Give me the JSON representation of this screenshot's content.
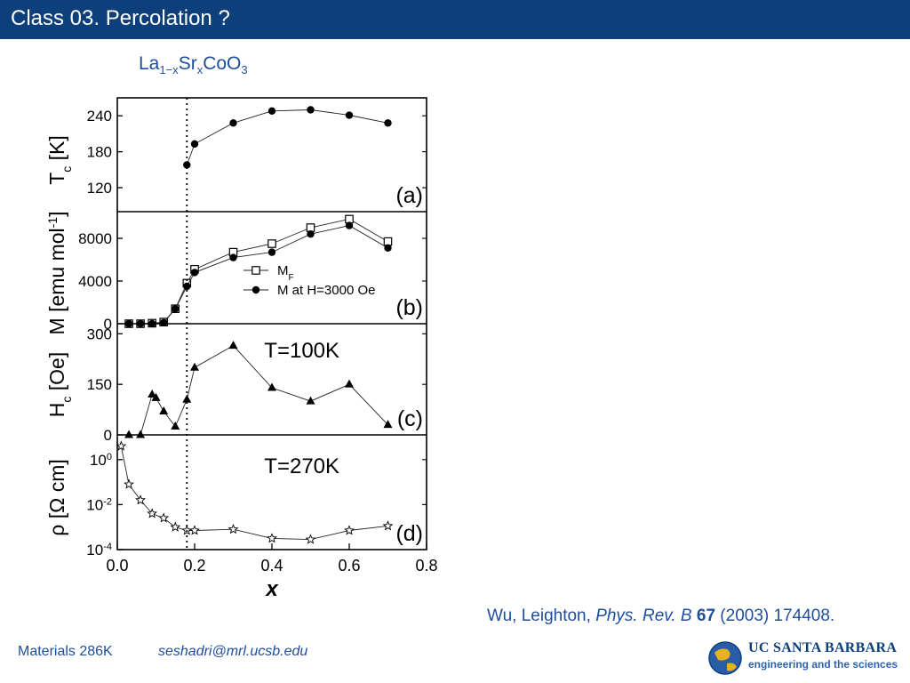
{
  "header": {
    "title": "Class 03. Percolation ?"
  },
  "compound": {
    "base": "La",
    "sub1": "1−x",
    "mid": "Sr",
    "sub2": "x",
    "tail": "CoO",
    "sub3": "3"
  },
  "chart_data": {
    "type": "line",
    "x_axis": {
      "label": "x",
      "ticks": [
        "0.0",
        "0.2",
        "0.4",
        "0.6",
        "0.8"
      ],
      "lim": [
        0.0,
        0.8
      ]
    },
    "threshold_x": 0.18,
    "panels": [
      {
        "id": "a",
        "panel_label": "(a)",
        "ylabel_parts": [
          "T",
          "c",
          " [K]"
        ],
        "ylim": [
          80,
          270
        ],
        "yticks": [
          "120",
          "180",
          "240"
        ],
        "ytick_values": [
          120,
          180,
          240
        ],
        "series": [
          {
            "marker": "filled-circle",
            "x": [
              0.18,
              0.2,
              0.3,
              0.4,
              0.5,
              0.6,
              0.7
            ],
            "y": [
              158,
              193,
              228,
              248,
              250,
              241,
              228
            ]
          }
        ]
      },
      {
        "id": "b",
        "panel_label": "(b)",
        "ylabel_parts": [
          "M [emu mol",
          "-1",
          "]"
        ],
        "ylim": [
          0,
          10500
        ],
        "yticks": [
          "0",
          "4000",
          "8000"
        ],
        "ytick_values": [
          0,
          4000,
          8000
        ],
        "legend": [
          {
            "marker": "open-square",
            "label_parts": [
              "M",
              "F"
            ]
          },
          {
            "marker": "filled-circle",
            "label_parts": [
              "M at H=3000 Oe",
              ""
            ]
          }
        ],
        "series": [
          {
            "marker": "open-square",
            "x": [
              0.03,
              0.06,
              0.09,
              0.12,
              0.15,
              0.18,
              0.2,
              0.3,
              0.4,
              0.5,
              0.6,
              0.7
            ],
            "y": [
              0,
              0,
              50,
              150,
              1400,
              3800,
              5100,
              6700,
              7500,
              9000,
              9800,
              7700
            ]
          },
          {
            "marker": "filled-circle",
            "x": [
              0.03,
              0.06,
              0.09,
              0.12,
              0.15,
              0.18,
              0.2,
              0.3,
              0.4,
              0.5,
              0.6,
              0.7
            ],
            "y": [
              0,
              0,
              0,
              100,
              1400,
              3500,
              4800,
              6200,
              6700,
              8400,
              9200,
              7100
            ]
          }
        ]
      },
      {
        "id": "c",
        "panel_label": "(c)",
        "annotation": "T=100K",
        "ylabel_parts": [
          "H",
          "c",
          " [Oe]"
        ],
        "ylim": [
          0,
          330
        ],
        "yticks": [
          "0",
          "150",
          "300"
        ],
        "ytick_values": [
          0,
          150,
          300
        ],
        "series": [
          {
            "marker": "filled-triangle",
            "x": [
              0.03,
              0.06,
              0.09,
              0.1,
              0.12,
              0.15,
              0.18,
              0.2,
              0.3,
              0.4,
              0.5,
              0.6,
              0.7
            ],
            "y": [
              0,
              0,
              120,
              110,
              70,
              25,
              105,
              200,
              265,
              140,
              100,
              150,
              30
            ]
          }
        ]
      },
      {
        "id": "d",
        "panel_label": "(d)",
        "annotation": "T=270K",
        "ylabel_parts": [
          "ρ  [Ω cm]",
          "",
          ""
        ],
        "ylim": [
          -4,
          1.1
        ],
        "log": true,
        "yticks": [
          [
            "10",
            "0"
          ],
          [
            "10",
            "-2"
          ],
          [
            "10",
            "-4"
          ]
        ],
        "ytick_values": [
          0,
          -2,
          -4
        ],
        "series": [
          {
            "marker": "open-star",
            "x": [
              0.01,
              0.03,
              0.06,
              0.09,
              0.12,
              0.15,
              0.18,
              0.2,
              0.3,
              0.4,
              0.5,
              0.6,
              0.7
            ],
            "y": [
              0.6,
              -1.1,
              -1.8,
              -2.4,
              -2.6,
              -3.0,
              -3.15,
              -3.15,
              -3.1,
              -3.5,
              -3.55,
              -3.15,
              -2.95
            ]
          }
        ]
      }
    ]
  },
  "citation": {
    "authors": "Wu, Leighton, ",
    "journal": "Phys. Rev. B",
    "volume": "67",
    "rest": " (2003) 174408."
  },
  "footer": {
    "course": "Materials 286K",
    "email": "seshadri@mrl.ucsb.edu"
  },
  "logo": {
    "line1": "UC SANTA BARBARA",
    "line2": "engineering and the sciences"
  }
}
